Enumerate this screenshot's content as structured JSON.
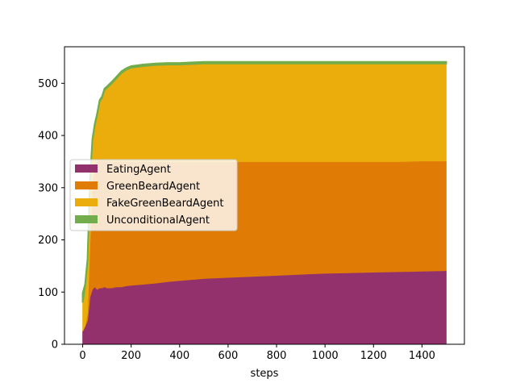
{
  "chart_data": {
    "type": "area",
    "stacked": true,
    "title": "",
    "xlabel": "steps",
    "ylabel": "",
    "xlim": [
      -75,
      1575
    ],
    "ylim": [
      0,
      570
    ],
    "xticks": [
      0,
      200,
      400,
      600,
      800,
      1000,
      1200,
      1400
    ],
    "yticks": [
      0,
      100,
      200,
      300,
      400,
      500
    ],
    "grid": false,
    "legend_position": "center-left",
    "x": [
      0,
      10,
      20,
      30,
      40,
      50,
      60,
      70,
      80,
      90,
      100,
      120,
      140,
      160,
      180,
      200,
      250,
      300,
      350,
      400,
      450,
      500,
      600,
      700,
      800,
      900,
      1000,
      1100,
      1200,
      1300,
      1400,
      1500
    ],
    "series": [
      {
        "name": "EatingAgent",
        "color": "#93316c",
        "values": [
          25,
          35,
          45,
          90,
          105,
          110,
          105,
          108,
          108,
          110,
          108,
          108,
          110,
          110,
          112,
          113,
          115,
          117,
          120,
          122,
          124,
          126,
          128,
          130,
          132,
          134,
          136,
          137,
          138,
          139,
          140,
          141
        ]
      },
      {
        "name": "GreenBeardAgent",
        "color": "#e07c06",
        "values": [
          0,
          0,
          15,
          100,
          200,
          238,
          245,
          245,
          244,
          242,
          243,
          242,
          240,
          240,
          238,
          237,
          235,
          233,
          230,
          228,
          226,
          224,
          222,
          220,
          218,
          216,
          214,
          213,
          212,
          211,
          211,
          210
        ]
      },
      {
        "name": "FakeGreenBeardAgent",
        "color": "#ebad0b",
        "values": [
          55,
          75,
          100,
          120,
          85,
          72,
          90,
          112,
          120,
          135,
          140,
          150,
          160,
          170,
          176,
          180,
          183,
          185,
          186,
          186,
          187,
          188,
          188,
          188,
          188,
          188,
          188,
          188,
          188,
          188,
          187,
          187
        ]
      },
      {
        "name": "UnconditionalAgent",
        "color": "#73ad4b",
        "values": [
          18,
          5,
          4,
          3,
          3,
          3,
          3,
          3,
          3,
          3,
          3,
          3,
          3,
          3,
          3,
          3,
          3,
          3,
          3,
          3,
          3,
          3,
          3,
          3,
          3,
          3,
          3,
          3,
          3,
          3,
          3,
          3
        ]
      }
    ]
  }
}
